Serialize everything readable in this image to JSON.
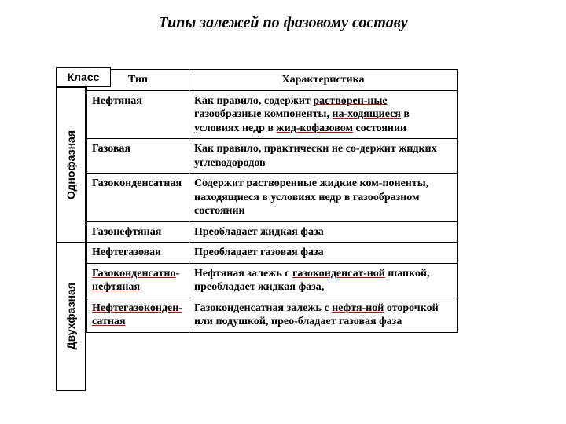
{
  "title": "Типы залежей по фазовому составу",
  "header": {
    "class": "Класс",
    "type": "Тип",
    "char": "Характеристика"
  },
  "classes": {
    "single": "Однофазная",
    "double": "Двухфазная"
  },
  "rows": {
    "r1_type": "Нефтяная",
    "r1_char_a": "Как правило, содержит ",
    "r1_char_b": "раство­рен-ные",
    "r1_char_c": " газообразные компоненты, ",
    "r1_char_d": "на-ходящиеся",
    "r1_char_e": "  в условиях недр в ",
    "r1_char_f": "жид-кофазовом",
    "r1_char_g": " состоянии",
    "r2_type": "Газовая",
    "r2_char": "Как правило, практически не со-держит жидких углеводородов",
    "r3_type": "Газоконденсатная",
    "r3_char": "Содержит растворенные жидкие ком-поненты, находящиеся в условиях недр в газообразном состоянии",
    "r4_type": "Газонефтяная",
    "r4_char": "Преобладает жидкая фаза",
    "r5_type": "Нефтегазовая",
    "r5_char": "Преобладает газовая фаза",
    "r6_type_a": "Газоконденсатно",
    "r6_type_b": "-",
    "r6_type_c": "нефтяная",
    "r6_char_a": "Нефтяная залежь с ",
    "r6_char_b": "газоконденсат-ной",
    "r6_char_c": " шапкой, преобладает жидкая фаза,",
    "r7_type_a": "Нефтегазоконден-сатная",
    "r7_char_a": "Газоконденсатная залежь с ",
    "r7_char_b": "нефтя-ной",
    "r7_char_c": " оторочкой или подушкой, прео-бладает газовая фаза"
  },
  "style": {
    "underline_color": "#c00000",
    "border_color": "#000000",
    "bg": "#ffffff"
  }
}
